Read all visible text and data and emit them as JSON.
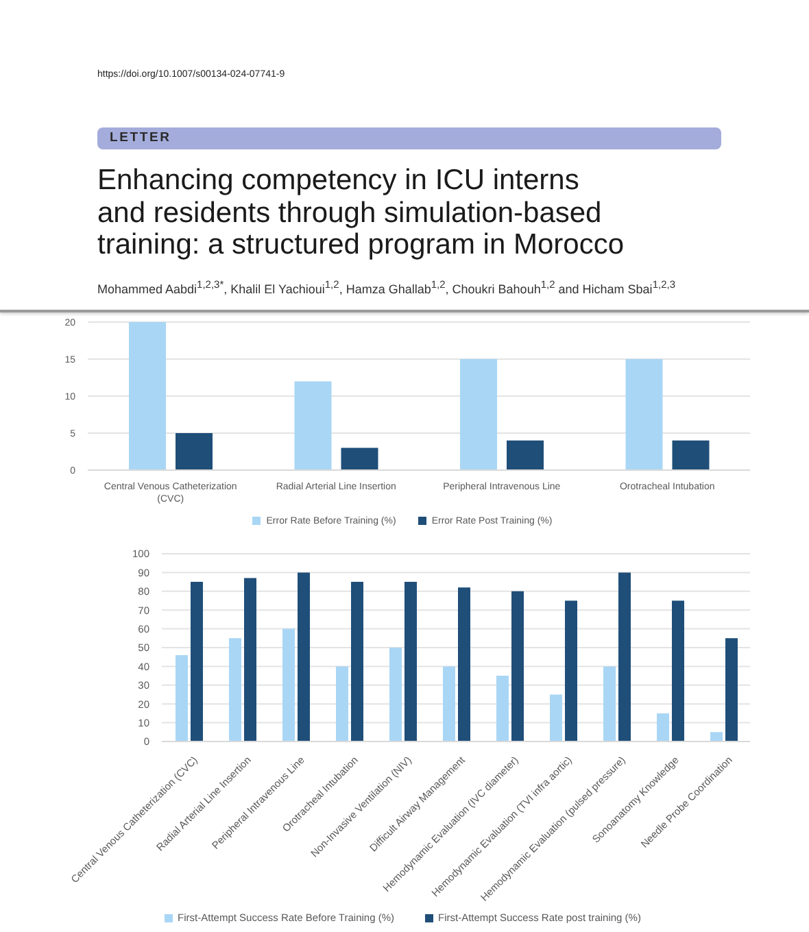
{
  "chart_data": [
    {
      "type": "bar",
      "title": "Enhancing competency in ICU interns and residents through simulation-based training: a structured program in Morocco",
      "subtitle": "Mohammed Aabdi$^{1,2,3*}$, Khalil El Yachioui$^{1,2}$, Hamza Ghallab$^{1,2}$, Choukri Bahouh$^{1,2}$ and Hicham Sbai$^{1,2,3}$",
      "annotations": [
        "https://doi.org/10.1007/s00134-024-07741-9",
        "LETTER"
      ],
      "categories": [
        "Central Venous Catheterization (CVC)",
        "Radial Arterial Line Insertion",
        "Peripheral Intravenous Line",
        "Orotracheal Intubation"
      ],
      "series": [
        {
          "name": "Error Rate Before Training (%)",
          "color": "#a9d6f5",
          "values": [
            20,
            12,
            15,
            15
          ]
        },
        {
          "name": "Error Rate Post Training (%)",
          "color": "#1f4e79",
          "values": [
            5,
            3,
            4,
            4
          ]
        }
      ],
      "ylim": [
        0,
        20
      ],
      "yticks": [
        0,
        5,
        10,
        15,
        20
      ],
      "grid": "y",
      "legend": "bottom"
    },
    {
      "type": "bar",
      "categories": [
        "Central Venous Catheterization (CVC)",
        "Radial Arterial Line Insertion",
        "Peripheral Intravenous Line",
        "Orotracheal Intubation",
        "Non-Invasive Ventilation (NIV)",
        "Difficult Airway Management",
        "Hemodynamic Evaluation (IVC diameter)",
        "Hemodynamic Evaluation (TVI infra aortic)",
        "Hemodynamic Evaluation (pulsed pressure)",
        "Sonoanatomy Knowledge",
        "Needle Probe Coordination"
      ],
      "series": [
        {
          "name": "First-Attempt Success Rate Before Training (%)",
          "color": "#a9d6f5",
          "values": [
            46,
            55,
            60,
            40,
            50,
            40,
            35,
            25,
            40,
            15,
            5
          ]
        },
        {
          "name": "First-Attempt Success Rate post training (%)",
          "color": "#1f4e79",
          "values": [
            85,
            87,
            90,
            85,
            85,
            82,
            80,
            75,
            90,
            75,
            55
          ]
        }
      ],
      "ylim": [
        0,
        100
      ],
      "yticks": [
        0,
        10,
        20,
        30,
        40,
        50,
        60,
        70,
        80,
        90,
        100
      ],
      "grid": "y",
      "legend": "bottom"
    }
  ]
}
